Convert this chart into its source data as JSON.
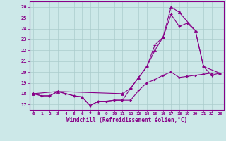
{
  "xlabel": "Windchill (Refroidissement éolien,°C)",
  "bg_color": "#cce8e8",
  "line_color": "#880088",
  "grid_color": "#aacccc",
  "xlim": [
    -0.5,
    23.5
  ],
  "ylim": [
    16.5,
    26.5
  ],
  "yticks": [
    17,
    18,
    19,
    20,
    21,
    22,
    23,
    24,
    25,
    26
  ],
  "xticks": [
    0,
    1,
    2,
    3,
    4,
    5,
    6,
    7,
    8,
    9,
    10,
    11,
    12,
    13,
    14,
    15,
    16,
    17,
    18,
    19,
    20,
    21,
    22,
    23
  ],
  "line1_x": [
    0,
    1,
    2,
    3,
    4,
    5,
    6,
    7,
    8,
    9,
    10,
    11,
    12,
    13,
    14,
    15,
    16,
    17,
    18,
    19,
    20,
    21,
    22,
    23
  ],
  "line1_y": [
    18.0,
    17.8,
    17.8,
    18.2,
    18.0,
    17.8,
    17.7,
    16.9,
    17.3,
    17.3,
    17.4,
    17.4,
    17.4,
    18.3,
    19.0,
    19.3,
    19.7,
    20.0,
    19.5,
    19.6,
    19.7,
    19.8,
    19.9,
    19.9
  ],
  "line2_x": [
    0,
    1,
    2,
    3,
    4,
    5,
    6,
    7,
    8,
    9,
    10,
    11,
    12,
    13,
    14,
    15,
    16,
    17,
    18,
    19,
    20,
    21,
    22,
    23
  ],
  "line2_y": [
    18.0,
    17.8,
    17.8,
    18.2,
    18.0,
    17.8,
    17.7,
    16.9,
    17.3,
    17.3,
    17.4,
    17.4,
    18.5,
    19.5,
    20.5,
    22.5,
    23.2,
    25.3,
    24.2,
    24.5,
    23.8,
    20.5,
    19.7,
    19.9
  ],
  "line3_x": [
    0,
    3,
    11,
    12,
    13,
    14,
    15,
    16,
    17,
    18,
    20,
    21,
    23
  ],
  "line3_y": [
    18.0,
    18.2,
    18.0,
    18.5,
    19.5,
    20.5,
    22.0,
    23.2,
    26.0,
    25.5,
    23.8,
    20.5,
    19.9
  ]
}
